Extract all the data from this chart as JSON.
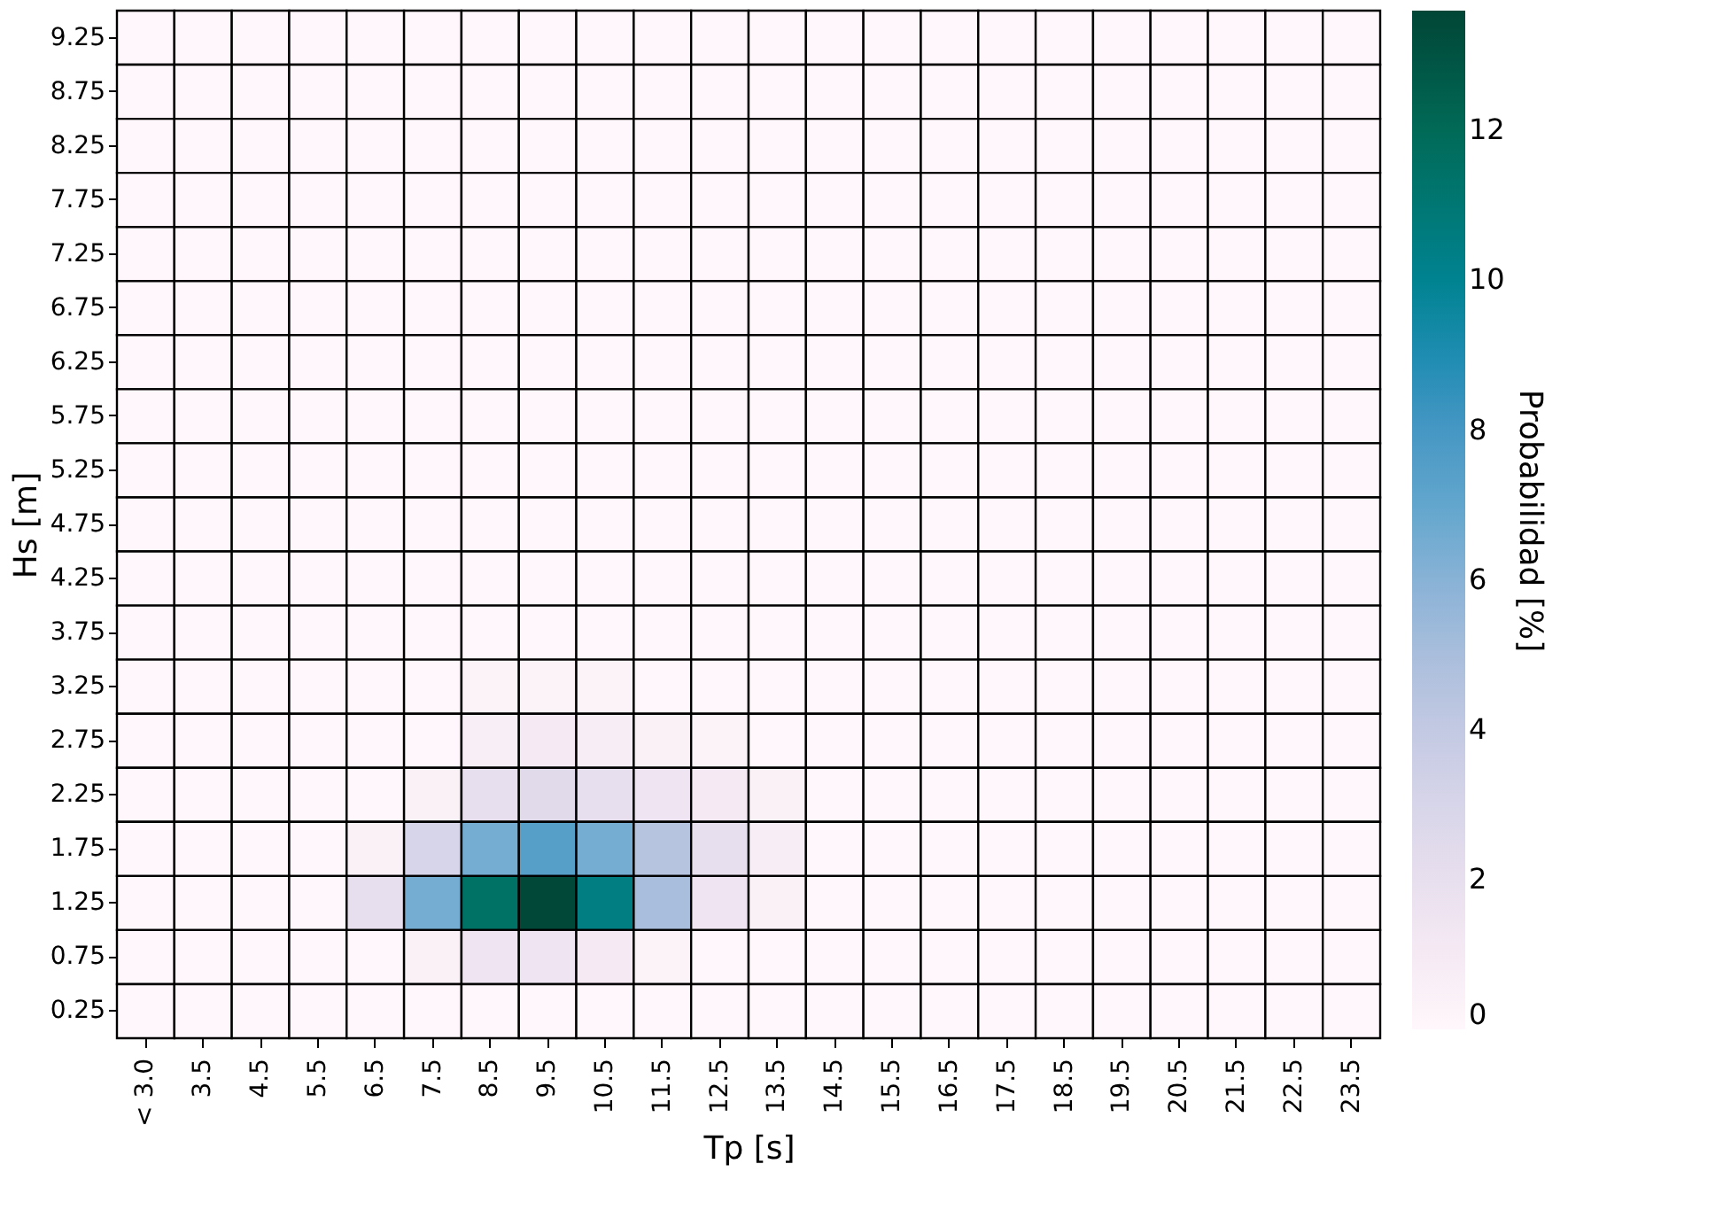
{
  "chart_data": {
    "type": "heatmap",
    "xlabel": "Tp [s]",
    "ylabel": "Hs [m]",
    "clabel": "Probabilidad [%]",
    "categories": [
      "< 3.0",
      "3.5",
      "4.5",
      "5.5",
      "6.5",
      "7.5",
      "8.5",
      "9.5",
      "10.5",
      "11.5",
      "12.5",
      "13.5",
      "14.5",
      "15.5",
      "16.5",
      "17.5",
      "18.5",
      "19.5",
      "20.5",
      "21.5",
      "22.5",
      "23.5"
    ],
    "y_categories": [
      "9.25",
      "8.75",
      "8.25",
      "7.75",
      "7.25",
      "6.75",
      "6.25",
      "5.75",
      "5.25",
      "4.75",
      "4.25",
      "3.75",
      "3.25",
      "2.75",
      "2.25",
      "1.75",
      "1.25",
      "0.75",
      "0.25"
    ],
    "cells": [
      [
        0,
        0,
        0,
        0,
        0,
        0,
        0,
        0,
        0,
        0,
        0,
        0,
        0,
        0,
        0,
        0,
        0,
        0,
        0,
        0,
        0,
        0
      ],
      [
        0,
        0,
        0,
        0,
        0,
        0,
        0,
        0,
        0,
        0,
        0,
        0,
        0,
        0,
        0,
        0,
        0,
        0,
        0,
        0,
        0,
        0
      ],
      [
        0,
        0,
        0,
        0,
        0,
        0,
        0,
        0,
        0,
        0,
        0,
        0,
        0,
        0,
        0,
        0,
        0,
        0,
        0,
        0,
        0,
        0
      ],
      [
        0,
        0,
        0,
        0,
        0,
        0,
        0,
        0,
        0,
        0,
        0,
        0,
        0,
        0,
        0,
        0,
        0,
        0,
        0,
        0,
        0,
        0
      ],
      [
        0,
        0,
        0,
        0,
        0,
        0,
        0,
        0,
        0,
        0,
        0,
        0,
        0,
        0,
        0,
        0,
        0,
        0,
        0,
        0,
        0,
        0
      ],
      [
        0,
        0,
        0,
        0,
        0,
        0,
        0,
        0,
        0,
        0,
        0,
        0,
        0,
        0,
        0,
        0,
        0,
        0,
        0,
        0,
        0,
        0
      ],
      [
        0,
        0,
        0,
        0,
        0,
        0,
        0,
        0,
        0,
        0,
        0,
        0,
        0,
        0,
        0,
        0,
        0,
        0,
        0,
        0,
        0,
        0
      ],
      [
        0,
        0,
        0,
        0,
        0,
        0,
        0,
        0,
        0,
        0,
        0,
        0,
        0,
        0,
        0,
        0,
        0,
        0,
        0,
        0,
        0,
        0
      ],
      [
        0,
        0,
        0,
        0,
        0,
        0,
        0,
        0,
        0,
        0,
        0,
        0,
        0,
        0,
        0,
        0,
        0,
        0,
        0,
        0,
        0,
        0
      ],
      [
        0,
        0,
        0,
        0,
        0,
        0,
        0,
        0,
        0,
        0,
        0,
        0,
        0,
        0,
        0,
        0,
        0,
        0,
        0,
        0,
        0,
        0
      ],
      [
        0,
        0,
        0,
        0,
        0,
        0,
        0,
        0,
        0,
        0,
        0,
        0,
        0,
        0,
        0,
        0,
        0,
        0,
        0,
        0,
        0,
        0
      ],
      [
        0,
        0,
        0,
        0,
        0,
        0,
        0,
        0,
        0,
        0,
        0,
        0,
        0,
        0,
        0,
        0,
        0,
        0,
        0,
        0,
        0,
        0
      ],
      [
        0,
        0,
        0,
        0,
        0,
        0,
        0.3,
        0.3,
        0.3,
        0,
        0,
        0,
        0,
        0,
        0,
        0,
        0,
        0,
        0,
        0,
        0,
        0
      ],
      [
        0,
        0,
        0,
        0,
        0,
        0,
        0.7,
        1.0,
        0.8,
        0.5,
        0.3,
        0,
        0,
        0,
        0,
        0,
        0,
        0,
        0,
        0,
        0,
        0
      ],
      [
        0,
        0,
        0,
        0,
        0,
        0.5,
        2.0,
        2.5,
        2.0,
        1.5,
        1.0,
        0.5,
        0,
        0,
        0,
        0,
        0,
        0,
        0,
        0,
        0,
        0
      ],
      [
        0,
        0,
        0,
        0,
        0.5,
        3.0,
        6.5,
        7.5,
        6.5,
        4.5,
        2.0,
        0.8,
        0,
        0,
        0,
        0,
        0,
        0,
        0,
        0,
        0,
        0
      ],
      [
        0,
        0,
        0,
        0,
        2.0,
        6.5,
        11.5,
        13.5,
        10.5,
        5.0,
        1.5,
        0.5,
        0,
        0,
        0,
        0,
        0,
        0,
        0,
        0,
        0,
        0
      ],
      [
        0,
        0,
        0,
        0,
        0,
        0.5,
        1.5,
        1.5,
        1.0,
        0.3,
        0,
        0,
        0,
        0,
        0,
        0,
        0,
        0,
        0,
        0,
        0,
        0
      ],
      [
        0,
        0,
        0,
        0,
        0,
        0,
        0,
        0,
        0,
        0,
        0,
        0,
        0,
        0,
        0,
        0,
        0,
        0,
        0,
        0,
        0,
        0
      ]
    ],
    "clim": [
      0,
      13.6
    ],
    "cticks": [
      0,
      2,
      4,
      6,
      8,
      10,
      12
    ]
  }
}
